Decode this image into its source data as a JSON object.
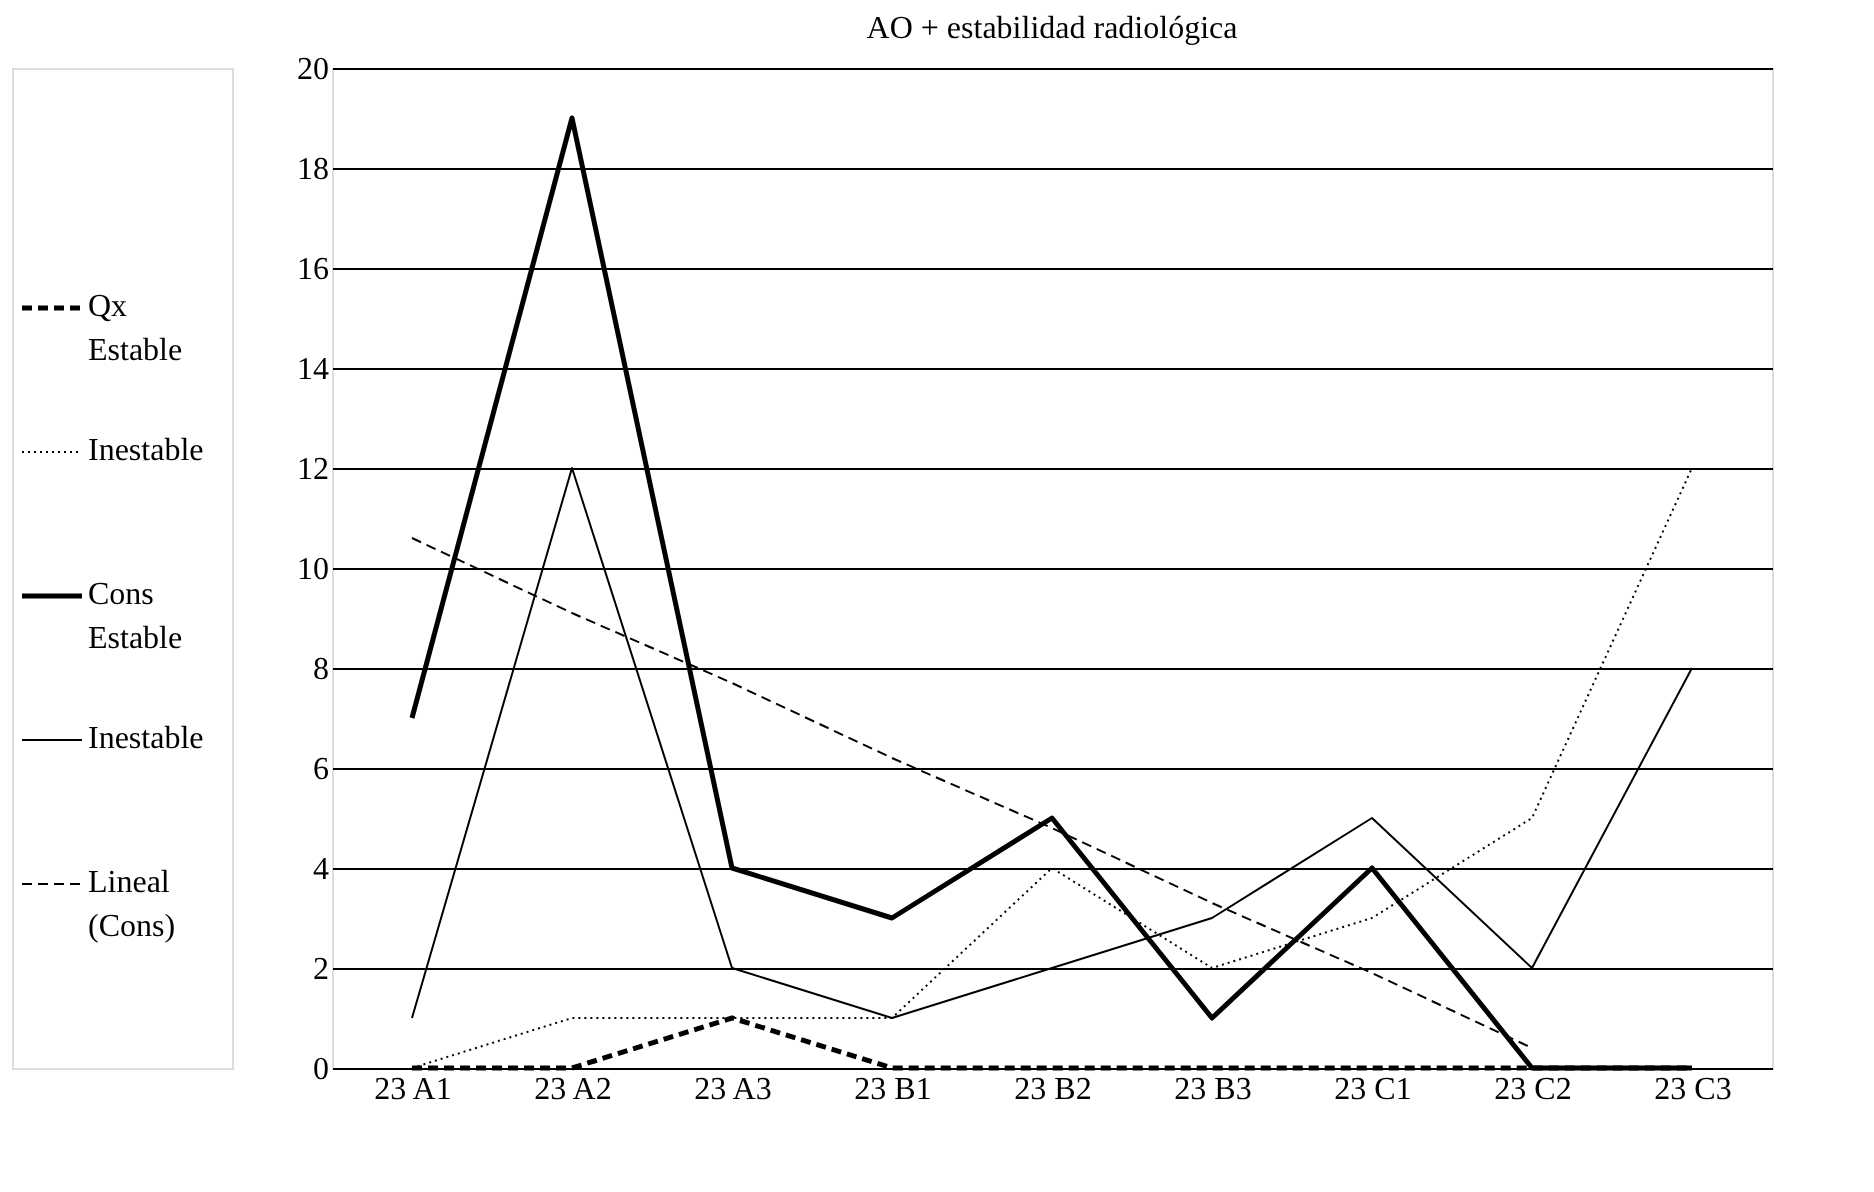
{
  "chart_data": {
    "type": "line",
    "title": "AO + estabilidad radiológica",
    "categories": [
      "23 A1",
      "23 A2",
      "23 A3",
      "23 B1",
      "23 B2",
      "23 B3",
      "23 C1",
      "23 C2",
      "23 C3"
    ],
    "series": [
      {
        "name": "Qx Estable",
        "color": "#000000",
        "line_style": "dashed",
        "values": [
          0,
          0,
          1,
          0,
          0,
          0,
          0,
          0,
          0
        ]
      },
      {
        "name": "Inestable",
        "color": "#000000",
        "line_style": "dotted",
        "values": [
          0,
          1,
          1,
          1,
          4,
          2,
          3,
          5,
          12
        ]
      },
      {
        "name": "Cons Estable",
        "color": "#000000",
        "line_style": "solid",
        "values": [
          7,
          19,
          4,
          3,
          5,
          1,
          4,
          0,
          0
        ]
      },
      {
        "name": "Inestable",
        "color": "#000000",
        "line_style": "solid",
        "values": [
          1,
          12,
          2,
          1,
          2,
          3,
          5,
          2,
          8
        ]
      },
      {
        "name": "Lineal (Cons)",
        "color": "#000000",
        "line_style": "dashed",
        "values": [
          10.6,
          9.1,
          7.7,
          6.2,
          4.8,
          3.3,
          1.9,
          0.4,
          null
        ]
      }
    ],
    "ylim": [
      0,
      20
    ],
    "yticks": [
      0,
      2,
      4,
      6,
      8,
      10,
      12,
      14,
      16,
      18,
      20
    ],
    "grid": "y",
    "legend": "left",
    "marker": "none"
  }
}
